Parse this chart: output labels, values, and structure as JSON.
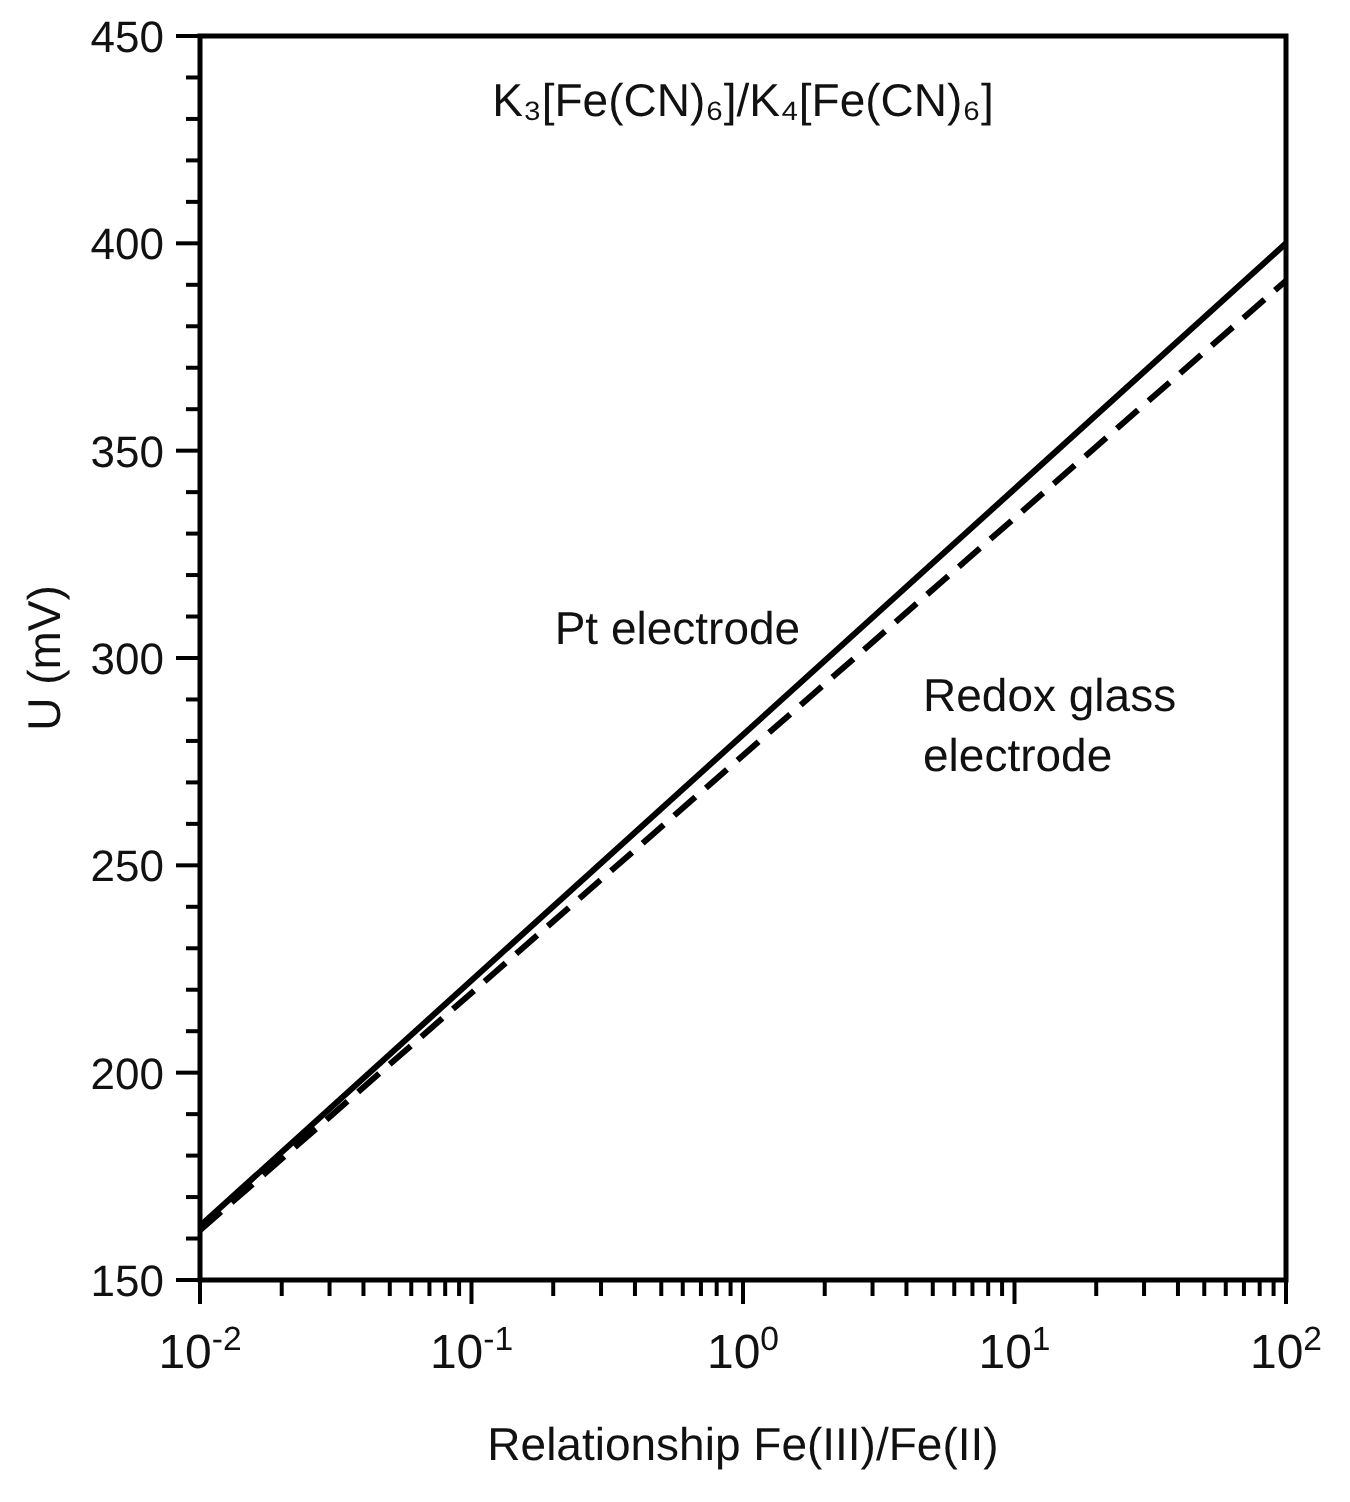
{
  "chart_data": {
    "type": "line",
    "title": "K₃[Fe(CN)₆]/K₄[Fe(CN)₆]",
    "xlabel": "Relationship Fe(III)/Fe(II)",
    "ylabel": "U (mV)",
    "log": "x",
    "grid": false,
    "marker": "none",
    "xlim": [
      0.01,
      100
    ],
    "x": [
      0.01,
      100
    ],
    "xticks": [
      {
        "value": 0.01,
        "label": "10$^{-2}$"
      },
      {
        "value": 0.02,
        "label": null
      },
      {
        "value": 0.03,
        "label": null
      },
      {
        "value": 0.04,
        "label": null
      },
      {
        "value": 0.05,
        "label": null
      },
      {
        "value": 0.06,
        "label": null
      },
      {
        "value": 0.07,
        "label": null
      },
      {
        "value": 0.08,
        "label": null
      },
      {
        "value": 0.09,
        "label": null
      },
      {
        "value": 0.1,
        "label": "10$^{-1}$"
      },
      {
        "value": 0.2,
        "label": null
      },
      {
        "value": 0.3,
        "label": null
      },
      {
        "value": 0.4,
        "label": null
      },
      {
        "value": 0.5,
        "label": null
      },
      {
        "value": 0.6,
        "label": null
      },
      {
        "value": 0.7,
        "label": null
      },
      {
        "value": 0.8,
        "label": null
      },
      {
        "value": 0.9,
        "label": null
      },
      {
        "value": 1,
        "label": "10$^{0}$"
      },
      {
        "value": 2,
        "label": null
      },
      {
        "value": 3,
        "label": null
      },
      {
        "value": 4,
        "label": null
      },
      {
        "value": 5,
        "label": null
      },
      {
        "value": 6,
        "label": null
      },
      {
        "value": 7,
        "label": null
      },
      {
        "value": 8,
        "label": null
      },
      {
        "value": 9,
        "label": null
      },
      {
        "value": 10,
        "label": "10$^{1}$"
      },
      {
        "value": 20,
        "label": null
      },
      {
        "value": 30,
        "label": null
      },
      {
        "value": 40,
        "label": null
      },
      {
        "value": 50,
        "label": null
      },
      {
        "value": 60,
        "label": null
      },
      {
        "value": 70,
        "label": null
      },
      {
        "value": 80,
        "label": null
      },
      {
        "value": 90,
        "label": null
      },
      {
        "value": 100,
        "label": "10$^{2}$"
      }
    ],
    "ylim": [
      150,
      450
    ],
    "yticks": [
      150,
      {
        "value": 160,
        "label": null
      },
      {
        "value": 170,
        "label": null
      },
      {
        "value": 180,
        "label": null
      },
      {
        "value": 190,
        "label": null
      },
      200,
      {
        "value": 210,
        "label": null
      },
      {
        "value": 220,
        "label": null
      },
      {
        "value": 230,
        "label": null
      },
      {
        "value": 240,
        "label": null
      },
      250,
      {
        "value": 260,
        "label": null
      },
      {
        "value": 270,
        "label": null
      },
      {
        "value": 280,
        "label": null
      },
      {
        "value": 290,
        "label": null
      },
      300,
      {
        "value": 310,
        "label": null
      },
      {
        "value": 320,
        "label": null
      },
      {
        "value": 330,
        "label": null
      },
      {
        "value": 340,
        "label": null
      },
      350,
      {
        "value": 360,
        "label": null
      },
      {
        "value": 370,
        "label": null
      },
      {
        "value": 380,
        "label": null
      },
      {
        "value": 390,
        "label": null
      },
      400,
      {
        "value": 410,
        "label": null
      },
      {
        "value": 420,
        "label": null
      },
      {
        "value": 430,
        "label": null
      },
      {
        "value": 440,
        "label": null
      },
      450
    ],
    "series": [
      {
        "name": "Pt electrode",
        "color": "#000000",
        "line_style": "solid",
        "values": [
          163,
          400
        ]
      },
      {
        "name": "Redox glass electrode",
        "color": "#000000",
        "line_style": "dashed",
        "values": [
          162,
          391
        ]
      }
    ]
  }
}
